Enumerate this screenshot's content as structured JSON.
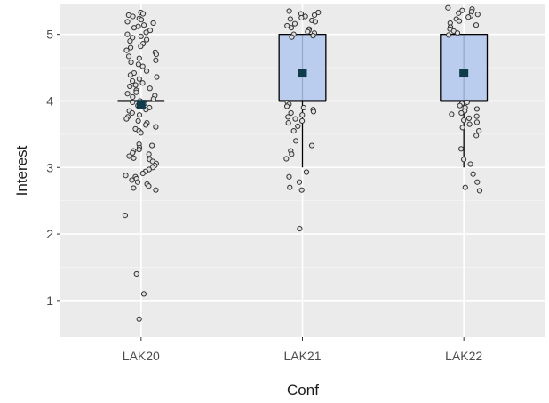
{
  "chart_data": {
    "type": "box",
    "xlabel": "Conf",
    "ylabel": "Interest",
    "categories": [
      "LAK20",
      "LAK21",
      "LAK22"
    ],
    "ylim": [
      0.45,
      5.45
    ],
    "yticks": [
      1,
      2,
      3,
      4,
      5
    ],
    "grid": true,
    "legend": "none",
    "colors": {
      "panel": "#ebebeb",
      "grid_major": "#ffffff",
      "box_fill": "#b3c8ee",
      "box_line": "#000000",
      "mean_marker": "#0f3b4a",
      "point_fill": "#e0e0e0",
      "point_stroke": "#333333"
    },
    "boxes": [
      {
        "category": "LAK20",
        "q1": 4,
        "median": 4,
        "q3": 4,
        "whisker_low": 4,
        "whisker_high": 4,
        "mean": 3.95
      },
      {
        "category": "LAK21",
        "q1": 4,
        "median": 4,
        "q3": 5,
        "whisker_low": 3,
        "whisker_high": 5,
        "mean": 4.42
      },
      {
        "category": "LAK22",
        "q1": 4,
        "median": 4,
        "q3": 5,
        "whisker_low": 3,
        "whisker_high": 5,
        "mean": 4.42
      }
    ],
    "points": [
      {
        "category": "LAK20",
        "values": [
          5.33,
          5.31,
          5.29,
          5.27,
          5.24,
          5.22,
          5.19,
          5.17,
          5.14,
          5.12,
          5.1,
          5.06,
          5.03,
          5.0,
          4.97,
          4.95,
          4.92,
          4.9,
          4.86,
          4.82,
          4.8,
          4.76,
          4.73,
          4.7,
          4.67,
          4.64,
          4.61,
          4.58,
          4.55,
          4.52,
          4.45,
          4.42,
          4.39,
          4.36,
          4.33,
          4.3,
          4.27,
          4.24,
          4.22,
          4.19,
          4.16,
          4.13,
          4.11,
          4.08,
          4.06,
          4.03,
          4.0,
          3.98,
          3.96,
          3.93,
          3.9,
          3.87,
          3.85,
          3.82,
          3.79,
          3.76,
          3.73,
          3.7,
          3.67,
          3.64,
          3.61,
          3.58,
          3.55,
          3.52,
          3.35,
          3.33,
          3.3,
          3.27,
          3.25,
          3.22,
          3.2,
          3.17,
          3.14,
          3.12,
          3.09,
          3.06,
          3.03,
          3.0,
          2.97,
          2.94,
          2.91,
          2.88,
          2.86,
          2.83,
          2.81,
          2.78,
          2.75,
          2.72,
          2.69,
          2.66,
          2.28,
          1.4,
          1.1,
          0.72
        ]
      },
      {
        "category": "LAK21",
        "values": [
          5.35,
          5.33,
          5.31,
          5.29,
          5.27,
          5.25,
          5.23,
          5.21,
          5.19,
          5.16,
          5.13,
          5.1,
          5.08,
          5.06,
          5.04,
          5.02,
          5.0,
          4.98,
          4.96,
          3.98,
          3.95,
          3.92,
          3.9,
          3.87,
          3.84,
          3.82,
          3.79,
          3.76,
          3.73,
          3.7,
          3.67,
          3.62,
          3.55,
          3.4,
          3.33,
          3.25,
          3.2,
          3.13,
          2.93,
          2.86,
          2.78,
          2.7,
          2.66,
          2.08
        ]
      },
      {
        "category": "LAK22",
        "values": [
          5.4,
          5.38,
          5.36,
          5.34,
          5.32,
          5.3,
          5.28,
          5.26,
          5.23,
          5.2,
          5.17,
          5.14,
          5.11,
          5.08,
          5.05,
          5.02,
          4.99,
          3.98,
          3.96,
          3.93,
          3.9,
          3.88,
          3.85,
          3.82,
          3.8,
          3.77,
          3.74,
          3.71,
          3.68,
          3.65,
          3.6,
          3.55,
          3.48,
          3.28,
          3.12,
          3.05,
          2.9,
          2.78,
          2.7,
          2.65
        ]
      }
    ]
  }
}
